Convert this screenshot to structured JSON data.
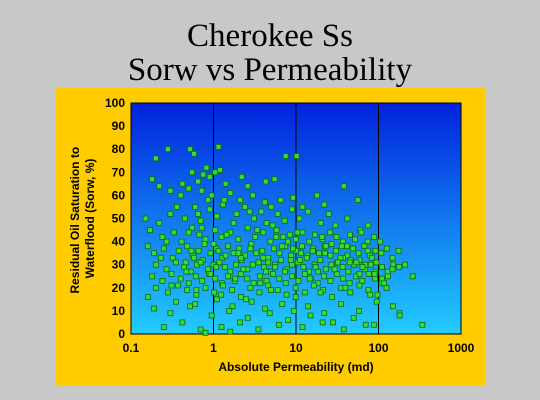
{
  "slide": {
    "title_line1": "Cherokee Ss",
    "title_line2": "Sorw vs Permeability"
  },
  "colors": {
    "slide_background": "#c8c8c8",
    "chart_area": "#ffcc00",
    "plot_gradient_top": "#0022dd",
    "plot_gradient_bottom": "#22ccff",
    "marker_fill": "#33dd33",
    "marker_stroke": "#116611"
  },
  "chart_data": {
    "type": "scatter",
    "xlabel": "Absolute Permeability (md)",
    "ylabel_line1": "Residual Oil Saturation to",
    "ylabel_line2": "Waterflood (Sorw, %)",
    "x_scale": "log",
    "xlim": [
      0.1,
      1000
    ],
    "ylim": [
      0,
      100
    ],
    "x_ticks": [
      "0.1",
      "1",
      "10",
      "100",
      "1000"
    ],
    "y_ticks": [
      "0",
      "10",
      "20",
      "30",
      "40",
      "50",
      "60",
      "70",
      "80",
      "90",
      "100"
    ],
    "grid": "vertical lines at decades",
    "marker": "square",
    "points": [
      [
        0.28,
        80
      ],
      [
        0.52,
        80
      ],
      [
        0.58,
        78
      ],
      [
        1.15,
        81
      ],
      [
        0.2,
        76
      ],
      [
        7.5,
        77
      ],
      [
        10.2,
        77
      ],
      [
        0.82,
        72
      ],
      [
        1.2,
        71
      ],
      [
        0.55,
        70
      ],
      [
        0.75,
        69
      ],
      [
        1.05,
        70
      ],
      [
        0.18,
        67
      ],
      [
        0.22,
        64
      ],
      [
        0.42,
        65
      ],
      [
        0.65,
        66
      ],
      [
        0.9,
        68
      ],
      [
        1.4,
        65
      ],
      [
        2.2,
        68
      ],
      [
        2.6,
        64
      ],
      [
        4.3,
        66
      ],
      [
        5.5,
        67
      ],
      [
        0.3,
        62
      ],
      [
        0.5,
        63
      ],
      [
        0.72,
        62
      ],
      [
        0.95,
        60
      ],
      [
        1.6,
        61
      ],
      [
        2.1,
        58
      ],
      [
        3,
        60
      ],
      [
        4.2,
        57
      ],
      [
        5,
        55
      ],
      [
        6.5,
        58
      ],
      [
        9.2,
        59
      ],
      [
        12,
        55
      ],
      [
        18,
        60
      ],
      [
        22,
        56
      ],
      [
        38,
        64
      ],
      [
        56,
        58
      ],
      [
        0.15,
        50
      ],
      [
        0.22,
        48
      ],
      [
        0.3,
        52
      ],
      [
        0.45,
        50
      ],
      [
        0.6,
        55
      ],
      [
        0.7,
        49
      ],
      [
        0.9,
        54
      ],
      [
        1.1,
        51
      ],
      [
        1.3,
        56
      ],
      [
        1.9,
        52
      ],
      [
        2.4,
        55
      ],
      [
        3.1,
        50
      ],
      [
        3.8,
        53
      ],
      [
        4.4,
        48
      ],
      [
        6,
        52
      ],
      [
        7.3,
        49
      ],
      [
        9,
        54
      ],
      [
        11,
        50
      ],
      [
        14,
        53
      ],
      [
        20,
        48
      ],
      [
        25,
        52
      ],
      [
        30,
        47
      ],
      [
        42,
        50
      ],
      [
        60,
        45
      ],
      [
        75,
        47
      ],
      [
        0.17,
        45
      ],
      [
        0.24,
        42
      ],
      [
        0.33,
        44
      ],
      [
        0.41,
        40
      ],
      [
        0.55,
        46
      ],
      [
        0.67,
        43
      ],
      [
        0.8,
        41
      ],
      [
        1.05,
        45
      ],
      [
        1.25,
        42
      ],
      [
        1.6,
        44
      ],
      [
        2,
        41
      ],
      [
        2.6,
        46
      ],
      [
        3.2,
        42
      ],
      [
        4,
        44
      ],
      [
        4.9,
        40
      ],
      [
        5.8,
        45
      ],
      [
        7,
        42
      ],
      [
        8.4,
        43
      ],
      [
        10,
        41
      ],
      [
        12,
        44
      ],
      [
        14.5,
        40
      ],
      [
        17,
        43
      ],
      [
        21,
        41
      ],
      [
        26,
        44
      ],
      [
        31,
        42
      ],
      [
        37,
        40
      ],
      [
        45,
        43
      ],
      [
        52,
        41
      ],
      [
        62,
        44
      ],
      [
        74,
        40
      ],
      [
        88,
        42
      ],
      [
        105,
        40
      ],
      [
        0.16,
        38
      ],
      [
        0.19,
        35
      ],
      [
        0.25,
        37
      ],
      [
        0.32,
        33
      ],
      [
        0.38,
        36
      ],
      [
        0.48,
        38
      ],
      [
        0.56,
        34
      ],
      [
        0.66,
        36
      ],
      [
        0.78,
        39
      ],
      [
        0.92,
        35
      ],
      [
        1.08,
        37
      ],
      [
        1.28,
        33
      ],
      [
        1.5,
        38
      ],
      [
        1.75,
        35
      ],
      [
        2.05,
        37
      ],
      [
        2.4,
        34
      ],
      [
        2.85,
        38
      ],
      [
        3.3,
        35
      ],
      [
        3.9,
        36
      ],
      [
        4.6,
        33
      ],
      [
        5.4,
        37
      ],
      [
        6.3,
        35
      ],
      [
        7.4,
        38
      ],
      [
        8.7,
        34
      ],
      [
        10.1,
        36
      ],
      [
        11.8,
        38
      ],
      [
        13.8,
        34
      ],
      [
        16.2,
        37
      ],
      [
        19,
        35
      ],
      [
        22.3,
        38
      ],
      [
        26.1,
        34
      ],
      [
        30.6,
        36
      ],
      [
        35.8,
        38
      ],
      [
        41.9,
        34
      ],
      [
        49,
        37
      ],
      [
        57.4,
        35
      ],
      [
        67.2,
        38
      ],
      [
        78.6,
        34
      ],
      [
        92,
        36
      ],
      [
        108,
        35
      ],
      [
        126,
        37
      ],
      [
        148,
        33
      ],
      [
        175,
        36
      ],
      [
        0.2,
        30
      ],
      [
        0.27,
        28
      ],
      [
        0.35,
        31
      ],
      [
        0.44,
        29
      ],
      [
        0.53,
        27
      ],
      [
        0.63,
        30
      ],
      [
        0.74,
        32
      ],
      [
        0.86,
        28
      ],
      [
        1,
        30
      ],
      [
        1.18,
        31
      ],
      [
        1.38,
        29
      ],
      [
        1.6,
        27
      ],
      [
        1.88,
        30
      ],
      [
        2.2,
        32
      ],
      [
        2.57,
        28
      ],
      [
        3,
        30
      ],
      [
        3.52,
        31
      ],
      [
        4.1,
        29
      ],
      [
        4.8,
        27
      ],
      [
        5.6,
        30
      ],
      [
        6.6,
        32
      ],
      [
        7.7,
        28
      ],
      [
        9,
        30
      ],
      [
        10.5,
        31
      ],
      [
        12.3,
        29
      ],
      [
        14.4,
        27
      ],
      [
        16.8,
        30
      ],
      [
        19.7,
        32
      ],
      [
        23,
        28
      ],
      [
        26.9,
        30
      ],
      [
        31.5,
        31
      ],
      [
        36.8,
        29
      ],
      [
        43,
        27
      ],
      [
        50.3,
        30
      ],
      [
        58.9,
        32
      ],
      [
        68.9,
        28
      ],
      [
        80.6,
        30
      ],
      [
        94.3,
        31
      ],
      [
        110,
        29
      ],
      [
        129,
        27
      ],
      [
        151,
        30
      ],
      [
        177,
        29
      ],
      [
        210,
        30
      ],
      [
        0.18,
        25
      ],
      [
        0.24,
        23
      ],
      [
        0.31,
        26
      ],
      [
        0.4,
        24
      ],
      [
        0.5,
        22
      ],
      [
        0.61,
        25
      ],
      [
        0.73,
        23
      ],
      [
        0.88,
        26
      ],
      [
        1.05,
        24
      ],
      [
        1.26,
        22
      ],
      [
        1.5,
        25
      ],
      [
        1.8,
        23
      ],
      [
        2.15,
        26
      ],
      [
        2.57,
        24
      ],
      [
        3.07,
        22
      ],
      [
        3.67,
        25
      ],
      [
        4.39,
        23
      ],
      [
        5.25,
        26
      ],
      [
        6.27,
        24
      ],
      [
        7.5,
        22
      ],
      [
        8.96,
        25
      ],
      [
        10.7,
        23
      ],
      [
        12.8,
        26
      ],
      [
        15.3,
        24
      ],
      [
        18.3,
        22
      ],
      [
        21.8,
        25
      ],
      [
        26.1,
        23
      ],
      [
        31.2,
        26
      ],
      [
        37.3,
        24
      ],
      [
        44.6,
        22
      ],
      [
        53.3,
        25
      ],
      [
        63.7,
        23
      ],
      [
        76.1,
        26
      ],
      [
        91,
        24
      ],
      [
        109,
        22
      ],
      [
        130,
        25
      ],
      [
        0.2,
        20
      ],
      [
        0.28,
        18
      ],
      [
        0.37,
        21
      ],
      [
        0.48,
        19
      ],
      [
        0.62,
        17
      ],
      [
        0.8,
        20
      ],
      [
        1.02,
        18
      ],
      [
        1.3,
        21
      ],
      [
        1.68,
        19
      ],
      [
        2.16,
        16
      ],
      [
        2.8,
        20
      ],
      [
        3.6,
        18
      ],
      [
        4.6,
        21
      ],
      [
        6,
        19
      ],
      [
        7.7,
        17
      ],
      [
        9.9,
        20
      ],
      [
        12.8,
        18
      ],
      [
        16.5,
        21
      ],
      [
        21.3,
        19
      ],
      [
        27.4,
        16
      ],
      [
        35.3,
        20
      ],
      [
        45.5,
        18
      ],
      [
        58.6,
        21
      ],
      [
        75.5,
        19
      ],
      [
        97.3,
        17
      ],
      [
        125,
        20
      ],
      [
        0.16,
        16
      ],
      [
        0.35,
        14
      ],
      [
        0.6,
        13
      ],
      [
        1.1,
        15
      ],
      [
        1.7,
        12
      ],
      [
        2.9,
        14
      ],
      [
        4.2,
        11
      ],
      [
        6.8,
        13
      ],
      [
        9.4,
        10
      ],
      [
        14,
        12
      ],
      [
        22,
        9
      ],
      [
        35,
        13
      ],
      [
        58,
        10
      ],
      [
        95,
        14
      ],
      [
        150,
        12
      ],
      [
        0.19,
        11
      ],
      [
        0.3,
        9
      ],
      [
        0.52,
        12
      ],
      [
        0.95,
        8
      ],
      [
        1.55,
        10
      ],
      [
        2.6,
        7
      ],
      [
        4.8,
        9
      ],
      [
        8,
        6
      ],
      [
        15,
        8
      ],
      [
        28,
        5
      ],
      [
        50,
        7
      ],
      [
        88,
        4
      ],
      [
        180,
        9
      ],
      [
        260,
        25
      ],
      [
        340,
        4
      ],
      [
        0.25,
        3
      ],
      [
        0.42,
        5
      ],
      [
        0.7,
        2
      ],
      [
        1.25,
        3
      ],
      [
        2.1,
        5
      ],
      [
        3.5,
        2
      ],
      [
        6.2,
        4
      ],
      [
        12,
        3
      ],
      [
        21,
        5
      ],
      [
        38,
        2
      ],
      [
        70,
        4
      ],
      [
        1.6,
        1
      ],
      [
        0.8,
        0.5
      ],
      [
        180,
        8
      ],
      [
        0.47,
        27
      ],
      [
        0.86,
        58
      ],
      [
        1.75,
        48
      ],
      [
        3.4,
        45
      ],
      [
        6.8,
        38
      ],
      [
        13.5,
        33
      ],
      [
        27,
        39
      ],
      [
        54,
        31
      ],
      [
        110,
        24
      ],
      [
        0.58,
        33
      ],
      [
        1.15,
        36
      ],
      [
        2.3,
        28
      ],
      [
        4.6,
        31
      ],
      [
        9.2,
        37
      ],
      [
        18.5,
        27
      ],
      [
        37,
        33
      ],
      [
        74,
        36
      ],
      [
        148,
        28
      ],
      [
        0.36,
        55
      ],
      [
        0.72,
        46
      ],
      [
        1.44,
        43
      ],
      [
        2.88,
        39
      ],
      [
        5.76,
        42
      ],
      [
        11.5,
        35
      ],
      [
        23,
        38
      ],
      [
        46,
        32
      ],
      [
        92,
        27
      ],
      [
        0.27,
        40
      ],
      [
        0.54,
        36
      ],
      [
        1.08,
        29
      ],
      [
        2.16,
        33
      ],
      [
        4.32,
        27
      ],
      [
        8.64,
        32
      ],
      [
        17.3,
        29
      ],
      [
        34.6,
        33
      ],
      [
        69.1,
        30
      ],
      [
        0.4,
        60
      ],
      [
        0.65,
        52
      ],
      [
        1.35,
        58
      ],
      [
        2.75,
        53
      ],
      [
        5.2,
        47
      ],
      [
        10.4,
        44
      ],
      [
        20.8,
        42
      ],
      [
        41.6,
        38
      ],
      [
        83.2,
        33
      ],
      [
        0.23,
        33
      ],
      [
        0.46,
        31
      ],
      [
        0.92,
        26
      ],
      [
        1.84,
        24
      ],
      [
        3.68,
        22
      ],
      [
        7.36,
        27
      ],
      [
        14.7,
        24
      ],
      [
        29.4,
        28
      ],
      [
        58.9,
        26
      ],
      [
        117,
        22
      ],
      [
        0.31,
        21
      ],
      [
        0.62,
        19
      ],
      [
        1.24,
        17
      ],
      [
        2.48,
        15
      ],
      [
        4.96,
        19
      ],
      [
        9.92,
        16
      ],
      [
        19.8,
        18
      ],
      [
        39.7,
        20
      ],
      [
        79.4,
        17
      ],
      [
        0.5,
        44
      ],
      [
        1,
        39
      ],
      [
        2,
        35
      ],
      [
        4,
        33
      ],
      [
        8,
        40
      ],
      [
        16,
        36
      ],
      [
        32,
        31
      ],
      [
        64,
        29
      ],
      [
        0.7,
        31
      ],
      [
        1.4,
        34
      ],
      [
        2.8,
        37
      ],
      [
        5.6,
        29
      ],
      [
        11.2,
        32
      ],
      [
        22.4,
        35
      ],
      [
        44.8,
        31
      ],
      [
        89.6,
        26
      ]
    ]
  }
}
